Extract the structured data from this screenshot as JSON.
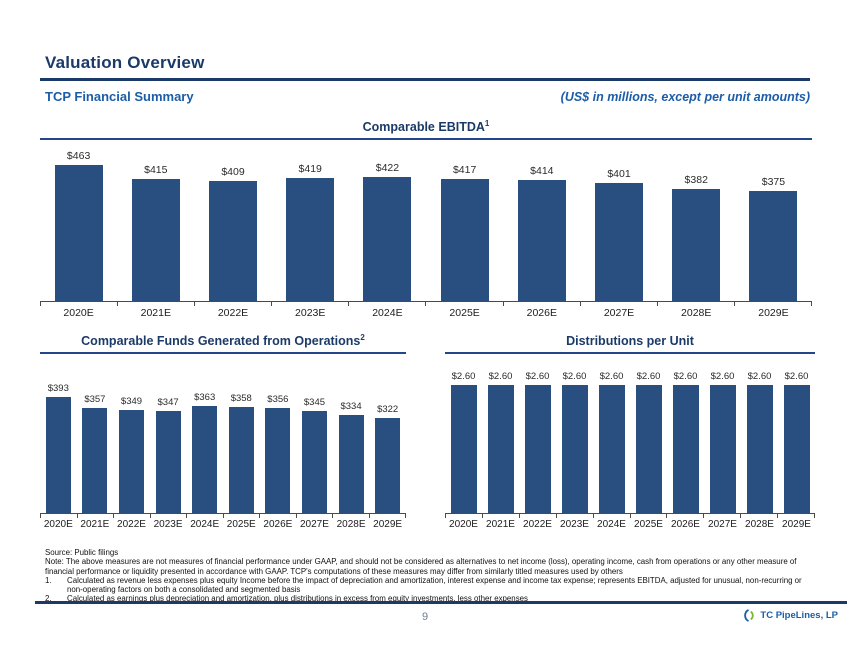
{
  "page": {
    "title": "Valuation Overview",
    "subtitle_left": "TCP Financial Summary",
    "subtitle_right": "(US$ in millions, except per unit amounts)",
    "page_number": "9",
    "logo_text": "TC PipeLines, LP"
  },
  "colors": {
    "bar": "#294F81",
    "navy": "#1B3A68",
    "accent_blue": "#1C5DA8",
    "logo_green": "#76B82A"
  },
  "chart_data": [
    {
      "type": "bar",
      "title": "Comparable EBITDA",
      "sup": "1",
      "categories": [
        "2020E",
        "2021E",
        "2022E",
        "2023E",
        "2024E",
        "2025E",
        "2026E",
        "2027E",
        "2028E",
        "2029E"
      ],
      "values": [
        463,
        415,
        409,
        419,
        422,
        417,
        414,
        401,
        382,
        375
      ],
      "labels": [
        "$463",
        "$415",
        "$409",
        "$419",
        "$422",
        "$417",
        "$414",
        "$401",
        "$382",
        "$375"
      ],
      "xlabel": "",
      "ylabel": "",
      "grid": false,
      "legend": false,
      "value_labels_shown": true
    },
    {
      "type": "bar",
      "title": "Comparable Funds Generated from Operations",
      "sup": "2",
      "categories": [
        "2020E",
        "2021E",
        "2022E",
        "2023E",
        "2024E",
        "2025E",
        "2026E",
        "2027E",
        "2028E",
        "2029E"
      ],
      "values": [
        393,
        357,
        349,
        347,
        363,
        358,
        356,
        345,
        334,
        322
      ],
      "labels": [
        "$393",
        "$357",
        "$349",
        "$347",
        "$363",
        "$358",
        "$356",
        "$345",
        "$334",
        "$322"
      ],
      "xlabel": "",
      "ylabel": "",
      "grid": false,
      "legend": false,
      "value_labels_shown": true
    },
    {
      "type": "bar",
      "title": "Distributions per Unit",
      "sup": "",
      "categories": [
        "2020E",
        "2021E",
        "2022E",
        "2023E",
        "2024E",
        "2025E",
        "2026E",
        "2027E",
        "2028E",
        "2029E"
      ],
      "values": [
        2.6,
        2.6,
        2.6,
        2.6,
        2.6,
        2.6,
        2.6,
        2.6,
        2.6,
        2.6
      ],
      "labels": [
        "$2.60",
        "$2.60",
        "$2.60",
        "$2.60",
        "$2.60",
        "$2.60",
        "$2.60",
        "$2.60",
        "$2.60",
        "$2.60"
      ],
      "xlabel": "",
      "ylabel": "",
      "grid": false,
      "legend": false,
      "value_labels_shown": true
    }
  ],
  "footnotes": {
    "source": "Source: Public filings",
    "note": "Note: The above measures are not measures of financial performance under GAAP, and should not be considered as alternatives to net income (loss), operating income, cash from operations or any other measure of financial performance or liquidity presented in accordance with GAAP. TCP's computations of these measures may differ from similarly titled measures used by others",
    "items": [
      {
        "num": "1.",
        "text": "Calculated as revenue less expenses plus equity Income before the impact of depreciation and amortization, interest expense and income tax expense; represents EBITDA, adjusted for unusual, non-recurring or non-operating factors on both a consolidated and segmented basis"
      },
      {
        "num": "2.",
        "text": "Calculated as earnings plus depreciation and amortization, plus distributions in excess from equity investments, less other expenses"
      }
    ]
  }
}
